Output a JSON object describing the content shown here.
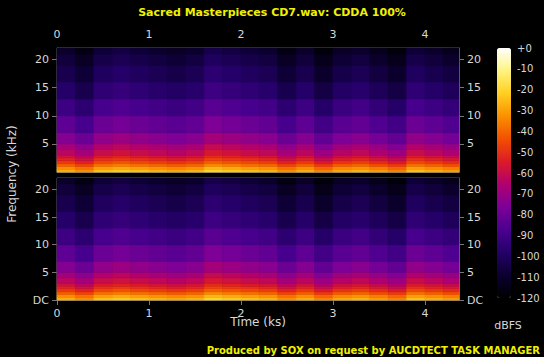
{
  "chart_data": {
    "type": "spectrogram",
    "title": "Sacred Masterpieces CD7.wav: CDDA 100%",
    "x_label": "Time (ks)",
    "y_label": "Frequency (kHz)",
    "footer": "Produced by SOX on request by AUCDTECT TASK MANAGER",
    "xlim": [
      0,
      4.37
    ],
    "xticks": [
      0,
      1,
      2,
      3,
      4
    ],
    "ylim": [
      0,
      22.05
    ],
    "time_bins": [
      0,
      0.2,
      0.4,
      0.6,
      0.8,
      1.0,
      1.2,
      1.4,
      1.6,
      1.8,
      2.0,
      2.2,
      2.4,
      2.6,
      2.8,
      3.0,
      3.2,
      3.4,
      3.6,
      3.8,
      4.0,
      4.2,
      4.37
    ],
    "freq_bins": [
      0,
      0.5,
      1,
      1.5,
      2,
      2.5,
      3,
      4,
      5,
      7,
      10,
      13,
      16,
      19,
      21,
      22.05
    ],
    "channels": [
      {
        "yticks": [
          5,
          10,
          15,
          20
        ],
        "cells": [
          [
            -28,
            -33,
            -25,
            -23,
            -25,
            -27,
            -29,
            -27,
            -21,
            -23,
            -25,
            -27,
            -33,
            -28,
            -35,
            -29,
            -27,
            -31,
            -35,
            -25,
            -28,
            -31
          ],
          [
            -33,
            -38,
            -30,
            -28,
            -30,
            -32,
            -34,
            -32,
            -26,
            -28,
            -30,
            -32,
            -38,
            -33,
            -40,
            -34,
            -32,
            -36,
            -40,
            -30,
            -33,
            -36
          ],
          [
            -41,
            -46,
            -38,
            -36,
            -38,
            -40,
            -42,
            -40,
            -34,
            -36,
            -38,
            -40,
            -46,
            -41,
            -48,
            -42,
            -40,
            -44,
            -48,
            -38,
            -41,
            -44
          ],
          [
            -48,
            -53,
            -45,
            -43,
            -45,
            -47,
            -49,
            -47,
            -41,
            -43,
            -45,
            -47,
            -53,
            -48,
            -55,
            -49,
            -47,
            -51,
            -55,
            -45,
            -48,
            -51
          ],
          [
            -53,
            -58,
            -50,
            -48,
            -50,
            -52,
            -54,
            -52,
            -46,
            -48,
            -50,
            -52,
            -58,
            -53,
            -60,
            -54,
            -52,
            -56,
            -60,
            -50,
            -53,
            -56
          ],
          [
            -58,
            -63,
            -55,
            -53,
            -55,
            -57,
            -59,
            -57,
            -51,
            -53,
            -55,
            -57,
            -63,
            -58,
            -65,
            -59,
            -57,
            -61,
            -65,
            -55,
            -58,
            -61
          ],
          [
            -63,
            -68,
            -60,
            -58,
            -60,
            -62,
            -64,
            -62,
            -56,
            -58,
            -60,
            -62,
            -68,
            -63,
            -70,
            -64,
            -62,
            -66,
            -70,
            -60,
            -63,
            -66
          ],
          [
            -68,
            -73,
            -65,
            -63,
            -65,
            -67,
            -69,
            -67,
            -61,
            -63,
            -65,
            -67,
            -73,
            -68,
            -75,
            -69,
            -67,
            -71,
            -75,
            -65,
            -68,
            -71
          ],
          [
            -75,
            -80,
            -72,
            -70,
            -72,
            -74,
            -76,
            -74,
            -68,
            -70,
            -72,
            -74,
            -80,
            -75,
            -82,
            -76,
            -74,
            -78,
            -82,
            -72,
            -75,
            -78
          ],
          [
            -83,
            -88,
            -80,
            -78,
            -80,
            -82,
            -84,
            -82,
            -76,
            -78,
            -80,
            -82,
            -88,
            -83,
            -90,
            -84,
            -82,
            -86,
            -90,
            -80,
            -83,
            -86
          ],
          [
            -91,
            -96,
            -88,
            -86,
            -88,
            -90,
            -92,
            -90,
            -84,
            -86,
            -88,
            -90,
            -96,
            -91,
            -98,
            -92,
            -90,
            -94,
            -98,
            -88,
            -91,
            -94
          ],
          [
            -98,
            -103,
            -95,
            -93,
            -95,
            -97,
            -99,
            -97,
            -91,
            -93,
            -95,
            -97,
            -103,
            -98,
            -105,
            -99,
            -97,
            -101,
            -105,
            -95,
            -98,
            -101
          ],
          [
            -103,
            -108,
            -100,
            -98,
            -100,
            -102,
            -104,
            -102,
            -96,
            -98,
            -100,
            -102,
            -108,
            -103,
            -110,
            -104,
            -102,
            -106,
            -110,
            -100,
            -103,
            -106
          ],
          [
            -107,
            -112,
            -104,
            -102,
            -104,
            -106,
            -108,
            -106,
            -100,
            -102,
            -104,
            -106,
            -112,
            -107,
            -114,
            -108,
            -106,
            -110,
            -114,
            -104,
            -107,
            -110
          ],
          [
            -111,
            -116,
            -108,
            -106,
            -108,
            -110,
            -112,
            -110,
            -104,
            -106,
            -108,
            -110,
            -116,
            -111,
            -118,
            -112,
            -110,
            -114,
            -118,
            -108,
            -111,
            -114
          ]
        ]
      },
      {
        "yticks": [
          {
            "value": 0,
            "label": "DC"
          },
          5,
          10,
          15,
          20
        ],
        "cells": [
          [
            -28,
            -33,
            -25,
            -23,
            -25,
            -27,
            -29,
            -27,
            -21,
            -23,
            -25,
            -27,
            -33,
            -28,
            -35,
            -29,
            -27,
            -31,
            -35,
            -25,
            -28,
            -31
          ],
          [
            -33,
            -38,
            -30,
            -28,
            -30,
            -32,
            -34,
            -32,
            -26,
            -28,
            -30,
            -32,
            -38,
            -33,
            -40,
            -34,
            -32,
            -36,
            -40,
            -30,
            -33,
            -36
          ],
          [
            -41,
            -46,
            -38,
            -36,
            -38,
            -40,
            -42,
            -40,
            -34,
            -36,
            -38,
            -40,
            -46,
            -41,
            -48,
            -42,
            -40,
            -44,
            -48,
            -38,
            -41,
            -44
          ],
          [
            -48,
            -53,
            -45,
            -43,
            -45,
            -47,
            -49,
            -47,
            -41,
            -43,
            -45,
            -47,
            -53,
            -48,
            -55,
            -49,
            -47,
            -51,
            -55,
            -45,
            -48,
            -51
          ],
          [
            -53,
            -58,
            -50,
            -48,
            -50,
            -52,
            -54,
            -52,
            -46,
            -48,
            -50,
            -52,
            -58,
            -53,
            -60,
            -54,
            -52,
            -56,
            -60,
            -50,
            -53,
            -56
          ],
          [
            -58,
            -63,
            -55,
            -53,
            -55,
            -57,
            -59,
            -57,
            -51,
            -53,
            -55,
            -57,
            -63,
            -58,
            -65,
            -59,
            -57,
            -61,
            -65,
            -55,
            -58,
            -61
          ],
          [
            -63,
            -68,
            -60,
            -58,
            -60,
            -62,
            -64,
            -62,
            -56,
            -58,
            -60,
            -62,
            -68,
            -63,
            -70,
            -64,
            -62,
            -66,
            -70,
            -60,
            -63,
            -66
          ],
          [
            -68,
            -73,
            -65,
            -63,
            -65,
            -67,
            -69,
            -67,
            -61,
            -63,
            -65,
            -67,
            -73,
            -68,
            -75,
            -69,
            -67,
            -71,
            -75,
            -65,
            -68,
            -71
          ],
          [
            -75,
            -80,
            -72,
            -70,
            -72,
            -74,
            -76,
            -74,
            -68,
            -70,
            -72,
            -74,
            -80,
            -75,
            -82,
            -76,
            -74,
            -78,
            -82,
            -72,
            -75,
            -78
          ],
          [
            -83,
            -88,
            -80,
            -78,
            -80,
            -82,
            -84,
            -82,
            -76,
            -78,
            -80,
            -82,
            -88,
            -83,
            -90,
            -84,
            -82,
            -86,
            -90,
            -80,
            -83,
            -86
          ],
          [
            -91,
            -96,
            -88,
            -86,
            -88,
            -90,
            -92,
            -90,
            -84,
            -86,
            -88,
            -90,
            -96,
            -91,
            -98,
            -92,
            -90,
            -94,
            -98,
            -88,
            -91,
            -94
          ],
          [
            -98,
            -103,
            -95,
            -93,
            -95,
            -97,
            -99,
            -97,
            -91,
            -93,
            -95,
            -97,
            -103,
            -98,
            -105,
            -99,
            -97,
            -101,
            -105,
            -95,
            -98,
            -101
          ],
          [
            -103,
            -108,
            -100,
            -98,
            -100,
            -102,
            -104,
            -102,
            -96,
            -98,
            -100,
            -102,
            -108,
            -103,
            -110,
            -104,
            -102,
            -106,
            -110,
            -100,
            -103,
            -106
          ],
          [
            -107,
            -112,
            -104,
            -102,
            -104,
            -106,
            -108,
            -106,
            -100,
            -102,
            -104,
            -106,
            -112,
            -107,
            -114,
            -108,
            -106,
            -110,
            -114,
            -104,
            -107,
            -110
          ],
          [
            -111,
            -116,
            -108,
            -106,
            -108,
            -110,
            -112,
            -110,
            -104,
            -106,
            -108,
            -110,
            -116,
            -111,
            -118,
            -112,
            -110,
            -114,
            -118,
            -108,
            -111,
            -114
          ]
        ]
      }
    ],
    "colorbar": {
      "label": "dBFS",
      "range": [
        -120,
        0
      ],
      "ticks": [
        {
          "value": 0,
          "label": "+0"
        },
        -10,
        -20,
        -30,
        -40,
        -50,
        -60,
        -70,
        -80,
        -90,
        -100,
        -110,
        -120
      ]
    }
  }
}
